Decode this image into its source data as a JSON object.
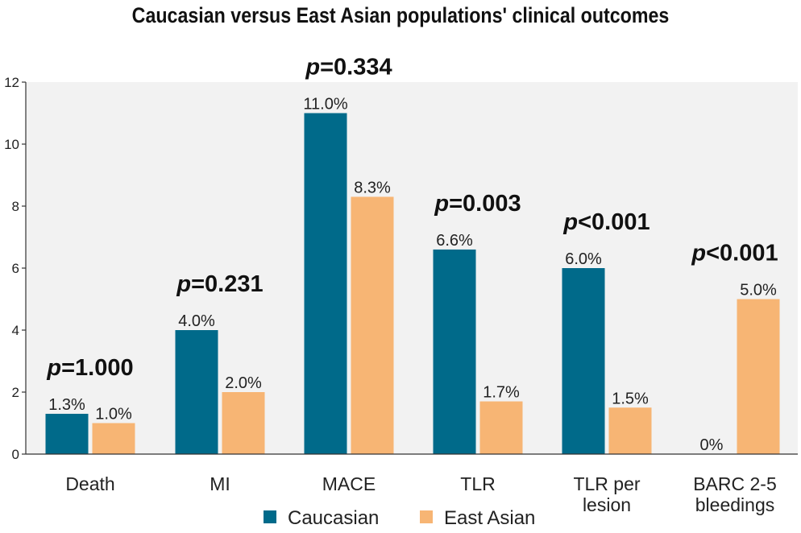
{
  "chart_data": {
    "type": "bar",
    "title": "Caucasian versus East Asian populations' clinical outcomes",
    "categories": [
      [
        "Death"
      ],
      [
        "MI"
      ],
      [
        "MACE"
      ],
      [
        "TLR"
      ],
      [
        "TLR per",
        "lesion"
      ],
      [
        "BARC 2-5",
        "bleedings"
      ]
    ],
    "series": [
      {
        "name": "Caucasian",
        "color": "#006a8a",
        "values": [
          1.3,
          4.0,
          11.0,
          6.6,
          6.0,
          0
        ],
        "labels": [
          "1.3%",
          "4.0%",
          "11.0%",
          "6.6%",
          "6.0%",
          "0%"
        ]
      },
      {
        "name": "East Asian",
        "color": "#f7b574",
        "values": [
          1.0,
          2.0,
          8.3,
          1.7,
          1.5,
          5.0
        ],
        "labels": [
          "1.0%",
          "2.0%",
          "8.3%",
          "1.7%",
          "1.5%",
          "5.0%"
        ]
      }
    ],
    "p_values": [
      {
        "italic": "p",
        "rest": "=1.000"
      },
      {
        "italic": "p",
        "rest": "=0.231"
      },
      {
        "italic": "p",
        "rest": "=0.334"
      },
      {
        "italic": "p",
        "rest": "=0.003"
      },
      {
        "italic": "p",
        "rest": "<0.001"
      },
      {
        "italic": "p",
        "rest": "<0.001"
      }
    ],
    "ylim": [
      0,
      12
    ],
    "yticks": [
      0,
      2,
      4,
      6,
      8,
      10,
      12
    ],
    "grid": false,
    "legend_position": "bottom-center",
    "plot_background": "#f2f2f2"
  }
}
